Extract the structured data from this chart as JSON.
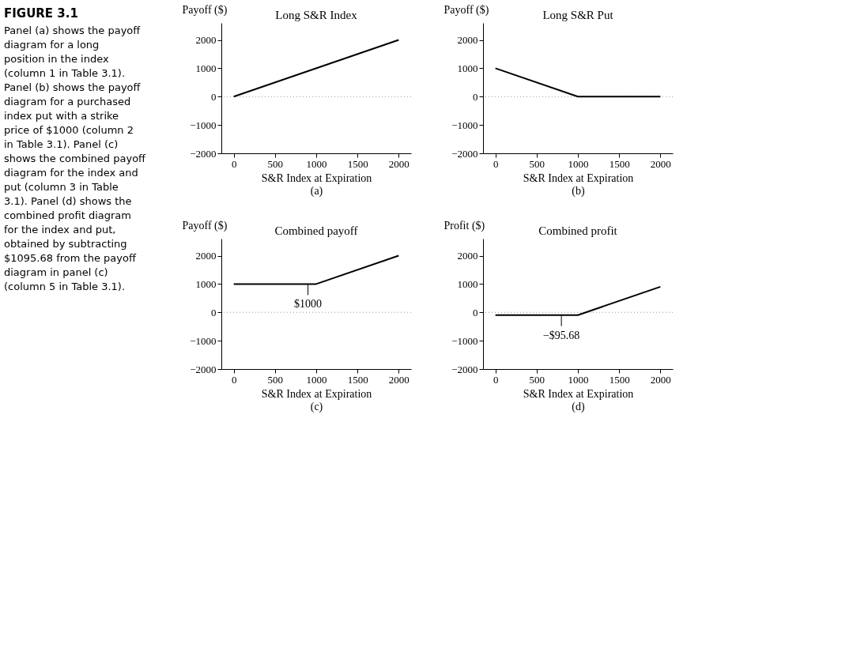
{
  "chart_data": [
    {
      "type": "other",
      "title": "FIGURE 3.1",
      "annotations": [
        "Panel (a) shows the payoff diagram for a long position in the index (column 1 in Table 3.1). Panel (b) shows the payoff diagram for a purchased index put with a strike price of $1000 (column 2 in Table 3.1). Panel (c) shows the combined payoff diagram for the index and put (column 3 in Table 3.1). Panel (d) shows the combined profit diagram for the index and put, obtained by subtracting $1095.68 from the payoff diagram in panel (c) (column 5 in Table 3.1)."
      ]
    },
    {
      "type": "line",
      "title": "Long S&R Index",
      "subtitle": "(a)",
      "xlabel": "S&R Index at Expiration",
      "ylabel": "Payoff ($)",
      "x": [
        0,
        2000
      ],
      "series": [
        {
          "color": "#000000",
          "values": [
            0,
            2000
          ]
        }
      ],
      "xlim": [
        -150,
        2150
      ],
      "ylim": [
        -2000,
        2600
      ],
      "xticks": [
        0,
        500,
        1000,
        1500,
        2000
      ],
      "yticks": [
        -2000,
        -1000,
        0,
        1000,
        2000
      ],
      "ref_lines": [
        {
          "axis": "y",
          "value": 0,
          "line_style": "dotted",
          "color": "#999999"
        }
      ]
    },
    {
      "type": "line",
      "title": "Long S&R Put",
      "subtitle": "(b)",
      "xlabel": "S&R Index at Expiration",
      "ylabel": "Payoff ($)",
      "x": [
        0,
        1000,
        2000
      ],
      "series": [
        {
          "color": "#000000",
          "values": [
            1000,
            0,
            0
          ]
        }
      ],
      "xlim": [
        -150,
        2150
      ],
      "ylim": [
        -2000,
        2600
      ],
      "xticks": [
        0,
        500,
        1000,
        1500,
        2000
      ],
      "yticks": [
        -2000,
        -1000,
        0,
        1000,
        2000
      ],
      "ref_lines": [
        {
          "axis": "y",
          "value": 0,
          "line_style": "dotted",
          "color": "#999999"
        }
      ]
    },
    {
      "type": "line",
      "title": "Combined payoff",
      "subtitle": "(c)",
      "xlabel": "S&R Index at Expiration",
      "ylabel": "Payoff ($)",
      "x": [
        0,
        1000,
        2000
      ],
      "series": [
        {
          "color": "#000000",
          "values": [
            1000,
            1000,
            2000
          ]
        }
      ],
      "xlim": [
        -150,
        2150
      ],
      "ylim": [
        -2000,
        2600
      ],
      "xticks": [
        0,
        500,
        1000,
        1500,
        2000
      ],
      "yticks": [
        -2000,
        -1000,
        0,
        1000,
        2000
      ],
      "ref_lines": [
        {
          "axis": "y",
          "value": 0,
          "line_style": "dotted",
          "color": "#999999"
        }
      ],
      "annotations": [
        {
          "text": "$1000",
          "x": 900,
          "y": 1000
        }
      ]
    },
    {
      "type": "line",
      "title": "Combined profit",
      "subtitle": "(d)",
      "xlabel": "S&R Index at Expiration",
      "ylabel": "Profit ($)",
      "x": [
        0,
        1000,
        2000
      ],
      "series": [
        {
          "color": "#000000",
          "values": [
            -95.68,
            -95.68,
            904.32
          ]
        }
      ],
      "xlim": [
        -150,
        2150
      ],
      "ylim": [
        -2000,
        2600
      ],
      "xticks": [
        0,
        500,
        1000,
        1500,
        2000
      ],
      "yticks": [
        -2000,
        -1000,
        0,
        1000,
        2000
      ],
      "ref_lines": [
        {
          "axis": "y",
          "value": 0,
          "line_style": "dotted",
          "color": "#999999"
        }
      ],
      "annotations": [
        {
          "text": "−$95.68",
          "x": 800,
          "y": -95.68
        }
      ]
    }
  ]
}
